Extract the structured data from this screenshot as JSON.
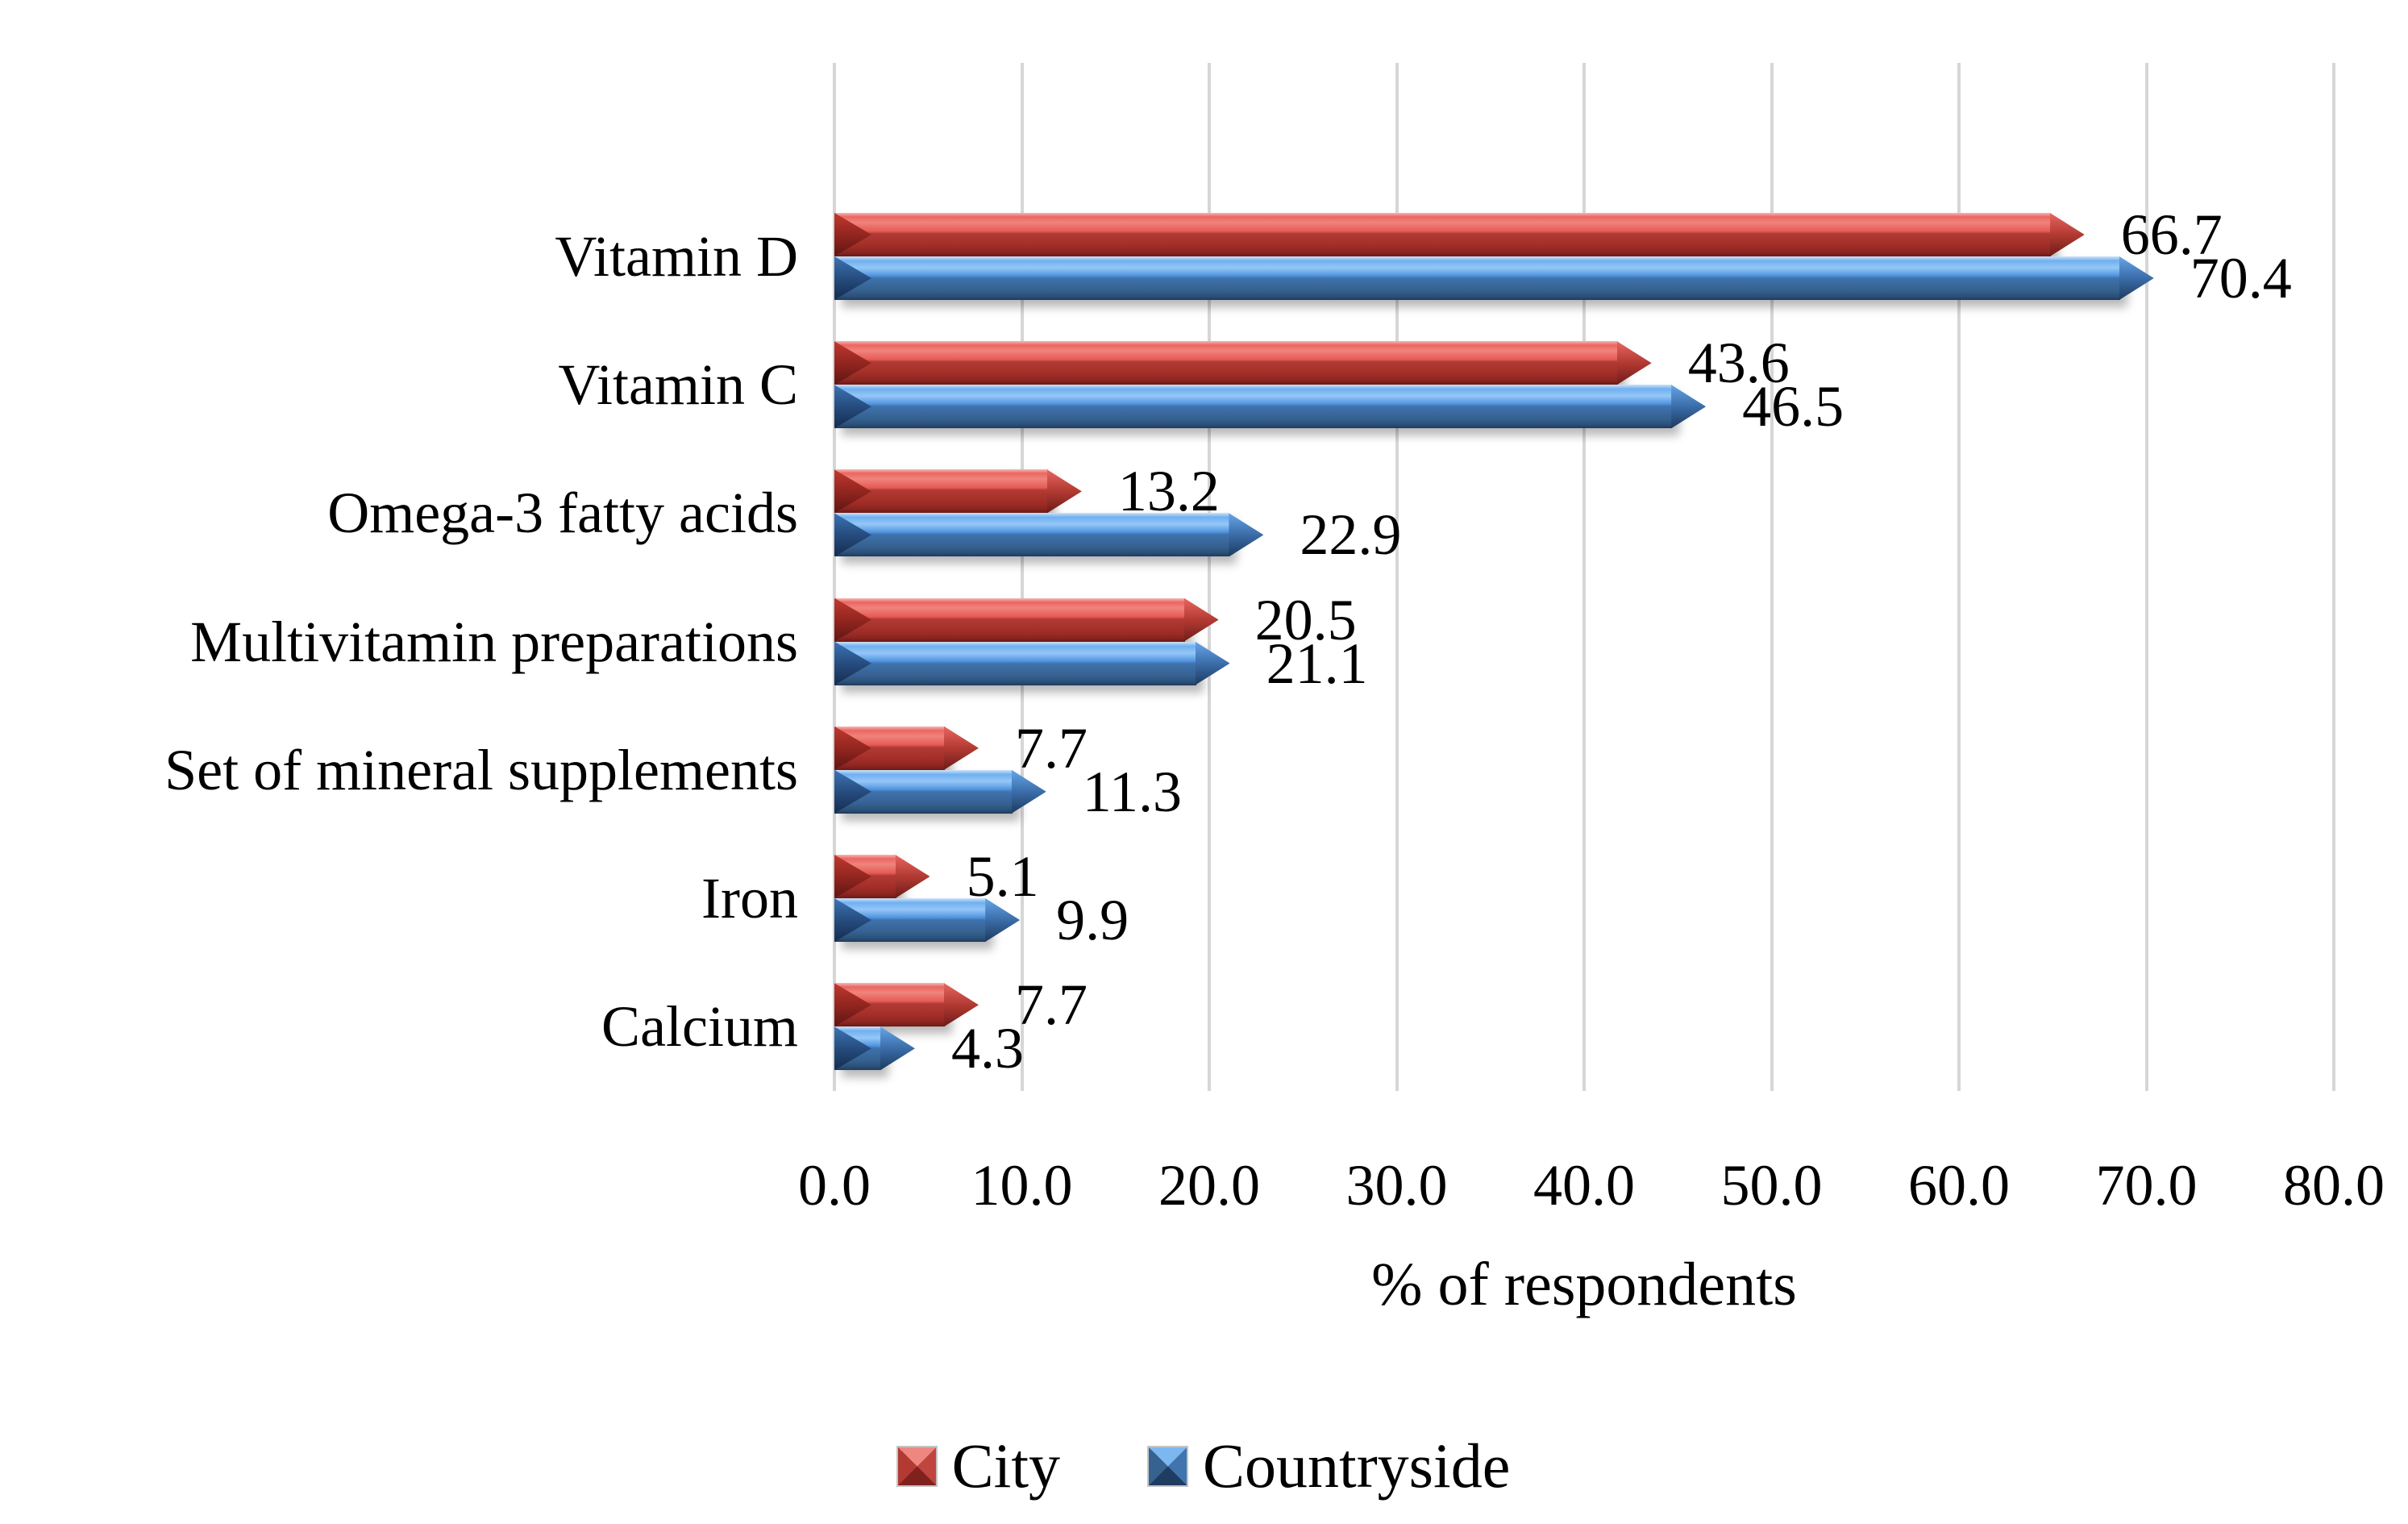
{
  "chart_data": {
    "type": "bar",
    "orientation": "horizontal",
    "title": "",
    "xlabel": "% of respondents",
    "ylabel": "",
    "xlim": [
      0,
      80
    ],
    "xticks": [
      "0.0",
      "10.0",
      "20.0",
      "30.0",
      "40.0",
      "50.0",
      "60.0",
      "70.0",
      "80.0"
    ],
    "grid": true,
    "value_labels": true,
    "legend_position": "bottom",
    "categories": [
      "Vitamin D",
      "Vitamin C",
      "Omega-3 fatty acids",
      "Multivitamin preparations",
      "Set of mineral supplements",
      "Iron",
      "Calcium"
    ],
    "series": [
      {
        "name": "City",
        "color": "#e0514b",
        "values": [
          66.7,
          43.6,
          13.2,
          20.5,
          7.7,
          5.1,
          7.7
        ],
        "labels": [
          "66.7",
          "43.6",
          "13.2",
          "20.5",
          "7.7",
          "5.1",
          "7.7"
        ]
      },
      {
        "name": "Countryside",
        "color": "#5195e0",
        "values": [
          70.4,
          46.5,
          22.9,
          21.1,
          11.3,
          9.9,
          4.3
        ],
        "labels": [
          "70.4",
          "46.5",
          "22.9",
          "21.1",
          "11.3",
          "9.9",
          "4.3"
        ]
      }
    ],
    "colors": {
      "gridline": "#d6d6d6",
      "text": "#000000",
      "background": "#ffffff"
    }
  }
}
